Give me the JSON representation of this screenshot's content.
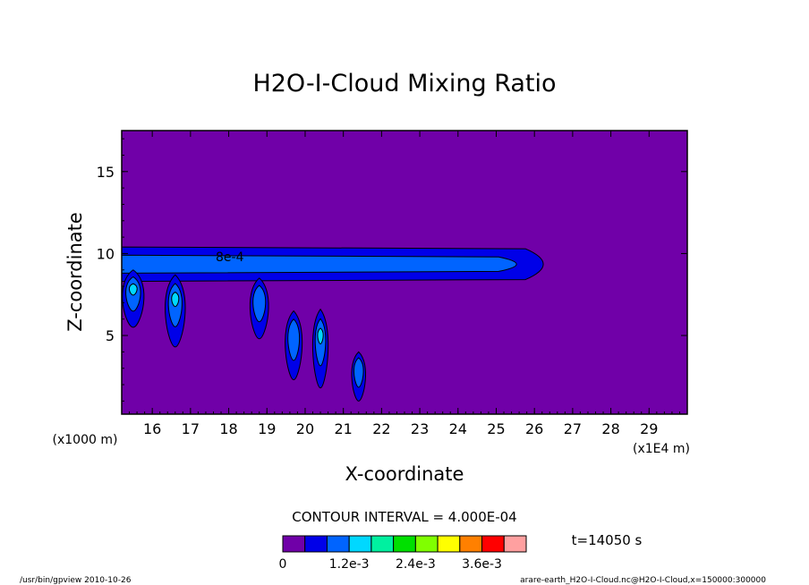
{
  "chart_data": {
    "type": "contour",
    "title": "H2O-I-Cloud Mixing Ratio",
    "xlabel": "X-coordinate",
    "ylabel": "Z-coordinate",
    "x_unit_left": "(x1000 m)",
    "x_unit_right": "(x1E4 m)",
    "xlim": [
      15.2,
      30.0
    ],
    "ylim": [
      0.2,
      17.5
    ],
    "x_ticks": [
      16,
      17,
      18,
      19,
      20,
      21,
      22,
      23,
      24,
      25,
      26,
      27,
      28,
      29
    ],
    "y_ticks": [
      5,
      10,
      15
    ],
    "contour_interval": "CONTOUR INTERVAL = 4.000E-04",
    "contour_label": "8e-4",
    "time_label": "t=14050 s",
    "levels": [
      0,
      0.0004,
      0.0008,
      0.0012,
      0.0016,
      0.002,
      0.0024,
      0.0028,
      0.0032,
      0.0036,
      0.004
    ],
    "colorbar_colors": [
      "#7000a8",
      "#0000e8",
      "#0064ff",
      "#00d8ff",
      "#00f0a0",
      "#00e000",
      "#80ff00",
      "#ffff00",
      "#ff8000",
      "#ff0000",
      "#ffa0a0"
    ],
    "colorbar_labels": [
      "0",
      "1.2e-3",
      "2.4e-3",
      "3.6e-3"
    ],
    "background_color": "#7000a8",
    "features": [
      {
        "kind": "layer",
        "x": [
          15.2,
          26.7
        ],
        "z": [
          8.3,
          10.4
        ],
        "level": 1
      },
      {
        "kind": "layer",
        "x": [
          15.2,
          26.0
        ],
        "z": [
          8.8,
          9.9
        ],
        "level": 2
      },
      {
        "kind": "plume",
        "x": 15.5,
        "z_top": 9.0,
        "z_bottom": 5.5,
        "level_max": 3
      },
      {
        "kind": "plume",
        "x": 16.6,
        "z_top": 8.7,
        "z_bottom": 4.3,
        "level_max": 3
      },
      {
        "kind": "plume",
        "x": 18.8,
        "z_top": 8.5,
        "z_bottom": 4.8,
        "level_max": 2
      },
      {
        "kind": "plume",
        "x": 19.7,
        "z_top": 6.5,
        "z_bottom": 2.3,
        "level_max": 2
      },
      {
        "kind": "plume",
        "x": 20.4,
        "z_top": 6.6,
        "z_bottom": 1.8,
        "level_max": 3
      },
      {
        "kind": "plume",
        "x": 21.4,
        "z_top": 4.0,
        "z_bottom": 1.0,
        "level_max": 2
      }
    ]
  },
  "footer": {
    "left": "/usr/bin/gpview  2010-10-26",
    "right": "arare-earth_H2O-I-Cloud.nc@H2O-I-Cloud,x=150000:300000"
  }
}
